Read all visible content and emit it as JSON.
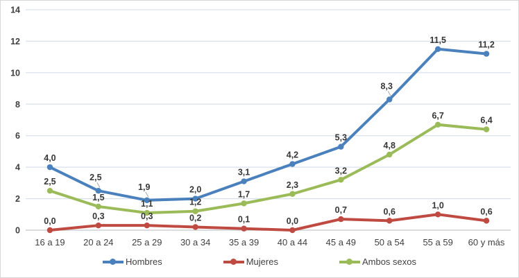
{
  "chart_data": {
    "type": "line",
    "title": "",
    "xlabel": "",
    "ylabel": "",
    "categories": [
      "16 a 19",
      "20 a 24",
      "25 a 29",
      "30 a 34",
      "35 a 39",
      "40 a 44",
      "45 a 49",
      "50 a 54",
      "55 a 59",
      "60 y más"
    ],
    "series": [
      {
        "name": "Hombres",
        "color": "#4A81BD",
        "values": [
          4.0,
          2.5,
          1.9,
          2.0,
          3.1,
          4.2,
          5.3,
          8.3,
          11.5,
          11.2
        ],
        "labels": [
          "4,0",
          "2,5",
          "1,9",
          "2,0",
          "3,1",
          "4,2",
          "5,3",
          "8,3",
          "11,5",
          "11,2"
        ]
      },
      {
        "name": "Mujeres",
        "color": "#BF4A41",
        "values": [
          0.0,
          0.3,
          0.3,
          0.2,
          0.1,
          0.0,
          0.7,
          0.6,
          1.0,
          0.6
        ],
        "labels": [
          "0,0",
          "0,3",
          "0,3",
          "0,2",
          "0,1",
          "0,0",
          "0,7",
          "0,6",
          "1,0",
          "0,6"
        ]
      },
      {
        "name": "Ambos sexos",
        "color": "#9BBB59",
        "values": [
          2.5,
          1.5,
          1.1,
          1.2,
          1.7,
          2.3,
          3.2,
          4.8,
          6.7,
          6.4
        ],
        "labels": [
          "2,5",
          "1,5",
          "1,1",
          "1,2",
          "1,7",
          "2,3",
          "3,2",
          "4,8",
          "6,7",
          "6,4"
        ]
      }
    ],
    "ylim": [
      0,
      14
    ],
    "yticks": [
      "0",
      "2",
      "4",
      "6",
      "8",
      "10",
      "12",
      "14"
    ],
    "grid": true,
    "legend_position": "bottom",
    "label_leaders": [
      [
        0,
        1
      ],
      [
        0,
        2
      ],
      [
        0,
        7
      ]
    ],
    "style": {
      "gridline_color": "#d9e1ec",
      "axis_line_color": "#c3c7cb",
      "tick_label_color": "#3f3f3f",
      "category_label_color": "#3f3f3f",
      "data_label_color": "#363636",
      "legend_text_color": "#404040",
      "leader_color": "#a6a6a6",
      "background": "#ffffff",
      "border_color": "#d6d6d6"
    }
  }
}
